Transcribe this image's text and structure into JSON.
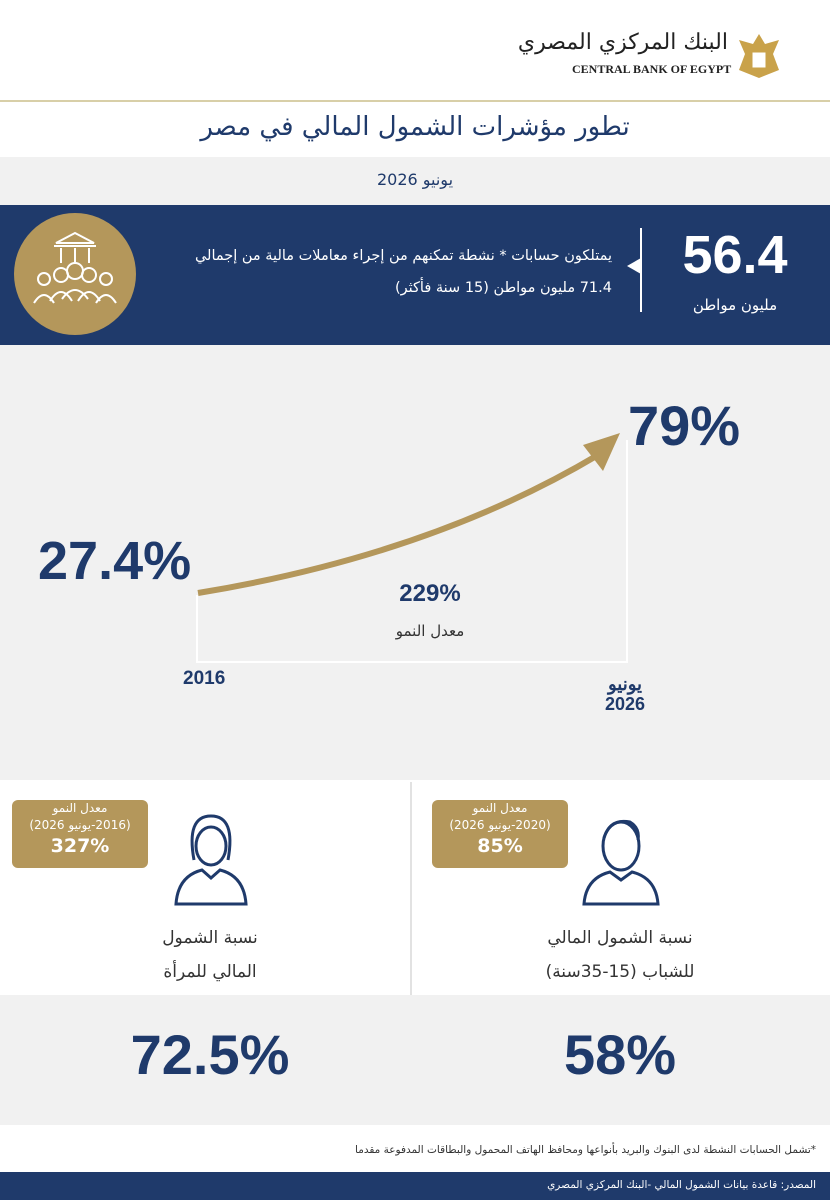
{
  "header": {
    "bank_name_ar": "البنك المركزي المصري",
    "bank_name_en": "CENTRAL BANK OF EGYPT"
  },
  "title": "تطور مؤشرات  الشمول المالي في مصر",
  "subtitle": "يونيو 2026",
  "highlight": {
    "value": "56.4",
    "unit": "مليون مواطن",
    "description_line1": "يمتلكون حسابات * نشطة تمكنهم من إجراء معاملات مالية من إجمالي",
    "description_line2": "71.4 مليون مواطن (15 سنة فأكثر)"
  },
  "growth": {
    "start_value": "27.4%",
    "end_value": "79%",
    "start_label": "2016",
    "end_label_line1": "يونيو",
    "end_label_line2": "2026",
    "rate_value": "229%",
    "rate_label": "معدل النمو"
  },
  "women": {
    "badge_title": "معدل النمو",
    "badge_period": "(2016-يونيو 2026)",
    "badge_value": "327%",
    "label_line1": "نسبة الشمول",
    "label_line2": "المالي للمرأة",
    "value": "72.5%"
  },
  "youth": {
    "badge_title": "معدل النمو",
    "badge_period": "(2020-يونيو 2026)",
    "badge_value": "85%",
    "label_line1": "نسبة الشمول المالي",
    "label_line2": "للشباب (15-35سنة)",
    "value": "58%"
  },
  "footnote": "*تشمل الحسابات النشطة لدى  البنوك والبريد بأنواعها ومحافظ الهاتف المحمول والبطاقات المدفوعة مقدما",
  "source": "المصدر: قاعدة بيانات الشمول المالي -البنك المركزي المصري"
}
